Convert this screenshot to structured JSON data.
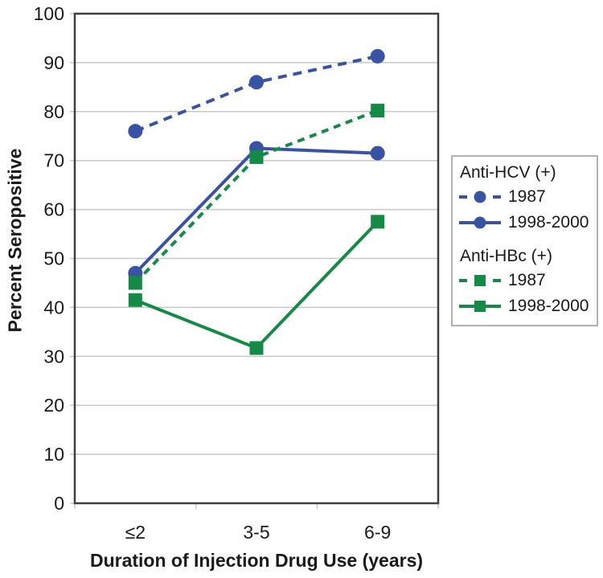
{
  "chart_data": {
    "type": "line",
    "title": "",
    "xlabel": "Duration of Injection Drug Use (years)",
    "ylabel": "Percent Seropositive",
    "categories": [
      "≤2",
      "3-5",
      "6-9"
    ],
    "ylim": [
      0,
      100
    ],
    "yticks": [
      0,
      10,
      20,
      30,
      40,
      50,
      60,
      70,
      80,
      90,
      100
    ],
    "grid": "horizontal-gridlines",
    "legend_position": "right-outside",
    "groups": [
      {
        "title": "Anti-HCV (+)",
        "series": [
          {
            "name": "1987",
            "line_style": "dashed",
            "marker": "circle",
            "color": "#3953a4",
            "values": [
              76,
              86,
              91.3
            ]
          },
          {
            "name": "1998-2000",
            "line_style": "solid",
            "marker": "circle",
            "color": "#3953a4",
            "values": [
              47,
              72.5,
              71.5
            ]
          }
        ]
      },
      {
        "title": "Anti-HBc (+)",
        "series": [
          {
            "name": "1987",
            "line_style": "dashed",
            "marker": "square",
            "color": "#158a46",
            "values": [
              45,
              70.7,
              80.2
            ]
          },
          {
            "name": "1998-2000",
            "line_style": "solid",
            "marker": "square",
            "color": "#158a46",
            "values": [
              41.5,
              31.7,
              57.5
            ]
          }
        ]
      }
    ],
    "colors": {
      "hcv_blue": "#3953a4",
      "hbc_green": "#158a46",
      "axis": "#3f3f3f",
      "gridline": "#c8c8c8",
      "text": "#1a1a1a",
      "legend_border": "#b2b2b2",
      "background": "#ffffff"
    }
  }
}
